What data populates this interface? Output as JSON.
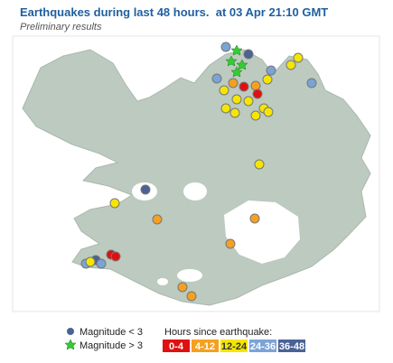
{
  "header": {
    "title": "Earthquakes during last 48 hours.  at 03 Apr 21:10 GMT",
    "subtitle": "Preliminary results"
  },
  "legend": {
    "magnitude": [
      "Magnitude < 3",
      "Magnitude > 3"
    ],
    "hours_title": "Hours since earthquake:",
    "hours": [
      "0-4",
      "4-12",
      "12-24",
      "24-36",
      "36-48"
    ]
  }
}
